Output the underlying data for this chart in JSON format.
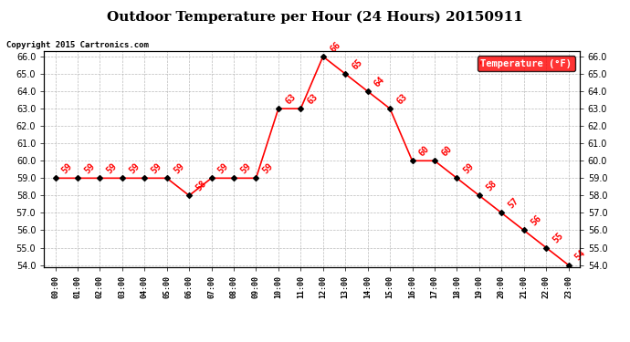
{
  "title": "Outdoor Temperature per Hour (24 Hours) 20150911",
  "copyright_text": "Copyright 2015 Cartronics.com",
  "legend_label": "Temperature (°F)",
  "hours": [
    0,
    1,
    2,
    3,
    4,
    5,
    6,
    7,
    8,
    9,
    10,
    11,
    12,
    13,
    14,
    15,
    16,
    17,
    18,
    19,
    20,
    21,
    22,
    23
  ],
  "temperatures": [
    59,
    59,
    59,
    59,
    59,
    59,
    58,
    59,
    59,
    59,
    63,
    63,
    66,
    65,
    64,
    63,
    60,
    60,
    59,
    58,
    57,
    56,
    55,
    54
  ],
  "line_color": "red",
  "marker_color": "black",
  "label_color": "red",
  "background_color": "white",
  "grid_color": "#aaaaaa",
  "ylim_min": 54.0,
  "ylim_max": 66.0,
  "ytick_step": 1.0,
  "title_fontsize": 11,
  "copyright_fontsize": 6.5,
  "legend_bg": "red",
  "legend_text_color": "white",
  "annotation_fontsize": 7
}
